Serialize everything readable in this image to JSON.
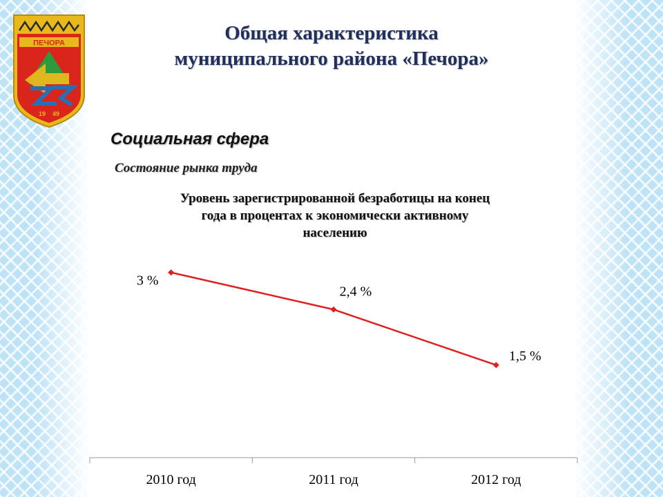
{
  "header": {
    "title_line1": "Общая характеристика",
    "title_line2": "муниципального района «Печора»"
  },
  "emblem": {
    "name": "ПЕЧОРА",
    "year_left": "19",
    "year_right": "49"
  },
  "section_title": "Социальная сфера",
  "subsection_title": "Состояние рынка труда",
  "chart_data": {
    "type": "line",
    "title_lines": [
      "Уровень зарегистрированной безработицы на конец",
      "года в процентах к экономически активному",
      "населению"
    ],
    "categories": [
      "2010 год",
      "2011 год",
      "2012 год"
    ],
    "series": [
      {
        "values": [
          3,
          2.4,
          1.5
        ],
        "color": "#e0201e"
      }
    ],
    "data_labels": [
      "3 %",
      "2,4 %",
      "1,5 %"
    ],
    "ylim": [
      0,
      3.5
    ],
    "grid": false,
    "legend": "none"
  },
  "colors": {
    "title": "#1f2f5e",
    "line": "#e0201e",
    "side_pattern": "#bfe3f6"
  }
}
